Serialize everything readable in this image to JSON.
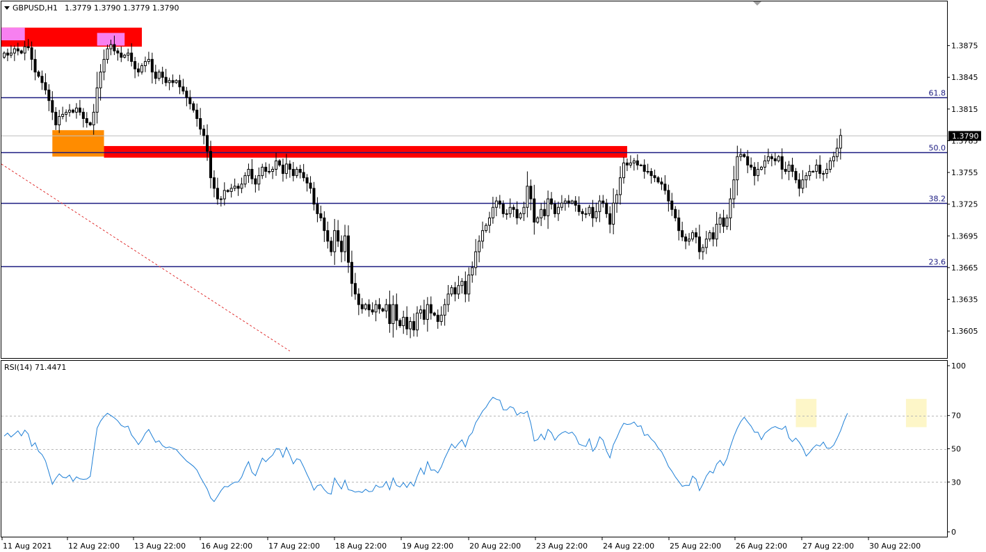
{
  "header": {
    "symbol_tf": "GBPUSD,H1",
    "ohlc": "1.3779 1.3790 1.3779 1.3790"
  },
  "rsi_header": {
    "label": "RSI(14) 71.4471"
  },
  "colors": {
    "axis": "#000000",
    "fib": "#1a1a80",
    "zone_red": "#ff0000",
    "zone_pink": "#f780f0",
    "zone_orange": "#ff8c00",
    "rsi_line": "#1e7fd6",
    "rsi_highlight": "#fdf6c8",
    "trend_dashed": "#e03030",
    "current_price_bg": "#000000"
  },
  "chart_data": [
    {
      "type": "candlestick",
      "symbol": "GBPUSD",
      "timeframe": "H1",
      "current_price": "1.3790",
      "ylim": [
        1.3586,
        1.3905
      ],
      "y_ticks": [
        "1.3875",
        "1.3845",
        "1.3815",
        "1.3785",
        "1.3755",
        "1.3725",
        "1.3695",
        "1.3665",
        "1.3635",
        "1.3605"
      ],
      "x_ticks": [
        "11 Aug 2021",
        "12 Aug 22:00",
        "13 Aug 22:00",
        "16 Aug 22:00",
        "17 Aug 22:00",
        "18 Aug 22:00",
        "19 Aug 22:00",
        "20 Aug 22:00",
        "23 Aug 22:00",
        "24 Aug 22:00",
        "25 Aug 22:00",
        "26 Aug 22:00",
        "27 Aug 22:00",
        "30 Aug 22:00"
      ],
      "fib_levels": [
        {
          "label": "61.8",
          "price": 1.3826
        },
        {
          "label": "50.0",
          "price": 1.3774
        },
        {
          "label": "38.2",
          "price": 1.3726
        },
        {
          "label": "23.6",
          "price": 1.3666
        }
      ],
      "zones": [
        {
          "color": "zone_red",
          "x_from": 0,
          "x_to": 40,
          "price_top": 1.3892,
          "price_bottom": 1.3874
        },
        {
          "color": "zone_pink",
          "x_from": 0,
          "x_to": 6,
          "price_top": 1.3892,
          "price_bottom": 1.388
        },
        {
          "color": "zone_pink",
          "x_from": 27,
          "x_to": 35,
          "price_top": 1.3887,
          "price_bottom": 1.3875
        },
        {
          "color": "zone_orange",
          "x_from": 14,
          "x_to": 29,
          "price_top": 1.3795,
          "price_bottom": 1.377
        },
        {
          "color": "zone_red",
          "x_from": 29,
          "x_to": 181,
          "price_top": 1.378,
          "price_bottom": 1.3769
        }
      ],
      "trendline": {
        "x_from": 0,
        "price_from": 1.3763,
        "x_to": 83,
        "price_to": 1.3586
      },
      "close": [
        1.3868,
        1.3866,
        1.3868,
        1.3872,
        1.387,
        1.3868,
        1.3874,
        1.3873,
        1.3862,
        1.385,
        1.3846,
        1.384,
        1.3833,
        1.3823,
        1.3812,
        1.38,
        1.3808,
        1.381,
        1.3812,
        1.3814,
        1.3812,
        1.3816,
        1.3812,
        1.3806,
        1.3802,
        1.38,
        1.3812,
        1.3835,
        1.385,
        1.3862,
        1.3872,
        1.3876,
        1.387,
        1.3868,
        1.3864,
        1.3866,
        1.3868,
        1.386,
        1.3853,
        1.385,
        1.3856,
        1.386,
        1.3862,
        1.385,
        1.3844,
        1.385,
        1.3845,
        1.384,
        1.3842,
        1.384,
        1.3842,
        1.3836,
        1.3832,
        1.3826,
        1.382,
        1.3814,
        1.3806,
        1.3796,
        1.379,
        1.3775,
        1.375,
        1.374,
        1.373,
        1.373,
        1.3738,
        1.3737,
        1.374,
        1.3742,
        1.374,
        1.3744,
        1.3752,
        1.3758,
        1.3749,
        1.3744,
        1.3752,
        1.376,
        1.3756,
        1.3756,
        1.3758,
        1.3766,
        1.3762,
        1.3754,
        1.3763,
        1.3758,
        1.3752,
        1.3758,
        1.3755,
        1.375,
        1.3745,
        1.374,
        1.3725,
        1.3716,
        1.3712,
        1.37,
        1.369,
        1.368,
        1.37,
        1.369,
        1.368,
        1.3695,
        1.367,
        1.365,
        1.364,
        1.363,
        1.3626,
        1.363,
        1.3625,
        1.3623,
        1.363,
        1.3626,
        1.3624,
        1.363,
        1.3612,
        1.363,
        1.3615,
        1.361,
        1.3618,
        1.3607,
        1.3614,
        1.3606,
        1.3622,
        1.3625,
        1.3616,
        1.363,
        1.3622,
        1.362,
        1.3614,
        1.362,
        1.363,
        1.364,
        1.3646,
        1.364,
        1.3648,
        1.3652,
        1.364,
        1.3658,
        1.3665,
        1.368,
        1.369,
        1.37,
        1.3705,
        1.3712,
        1.3722,
        1.3728,
        1.3725,
        1.3716,
        1.3716,
        1.3722,
        1.372,
        1.3712,
        1.3716,
        1.3722,
        1.3742,
        1.373,
        1.3708,
        1.3712,
        1.372,
        1.3714,
        1.373,
        1.3725,
        1.3716,
        1.3722,
        1.3726,
        1.3728,
        1.3726,
        1.3728,
        1.3724,
        1.3718,
        1.3716,
        1.3716,
        1.3722,
        1.3712,
        1.3718,
        1.3728,
        1.3726,
        1.3716,
        1.3706,
        1.3726,
        1.3734,
        1.375,
        1.3764,
        1.3762,
        1.3764,
        1.3766,
        1.3762,
        1.3762,
        1.3756,
        1.3756,
        1.3752,
        1.375,
        1.3746,
        1.3744,
        1.3738,
        1.3728,
        1.372,
        1.3712,
        1.37,
        1.3694,
        1.369,
        1.3692,
        1.3698,
        1.3694,
        1.368,
        1.3684,
        1.3692,
        1.3698,
        1.3692,
        1.3706,
        1.3712,
        1.3704,
        1.3712,
        1.373,
        1.3748,
        1.377,
        1.3772,
        1.377,
        1.3762,
        1.376,
        1.3752,
        1.3758,
        1.376,
        1.3766,
        1.377,
        1.3768,
        1.3766,
        1.377,
        1.3758,
        1.3756,
        1.3762,
        1.3756,
        1.3748,
        1.374,
        1.3748,
        1.3752,
        1.3756,
        1.3756,
        1.3762,
        1.3754,
        1.3754,
        1.3758,
        1.3766,
        1.377,
        1.3778,
        1.379
      ]
    },
    {
      "type": "line",
      "name": "RSI(14)",
      "ylim": [
        0,
        100
      ],
      "y_ticks": [
        "100",
        "70",
        "50",
        "30",
        "0"
      ],
      "levels": [
        70,
        50,
        30
      ],
      "highlights": [
        {
          "x_from": 230,
          "x_to": 236,
          "value_from": 63,
          "value_to": 80
        },
        {
          "x_from": 262,
          "x_to": 268,
          "value_from": 63,
          "value_to": 80
        }
      ],
      "values": [
        57.6,
        59.4,
        57.1,
        58.9,
        60.8,
        57.8,
        61.2,
        58.9,
        51.5,
        53.6,
        48.4,
        46.5,
        42.7,
        35.7,
        28.6,
        32.2,
        34.9,
        32.9,
        32.5,
        34.2,
        30.4,
        33.1,
        31.9,
        31.6,
        31.8,
        33.4,
        48.0,
        62.5,
        66.6,
        69.4,
        71.4,
        70.0,
        68.6,
        66.8,
        64.1,
        63.0,
        63.6,
        58.3,
        55.7,
        52.5,
        55.3,
        59.3,
        61.6,
        57.7,
        53.9,
        54.8,
        51.9,
        50.6,
        51.1,
        50.3,
        49.5,
        47.0,
        44.8,
        42.6,
        41.1,
        39.4,
        37.2,
        32.9,
        29.4,
        25.7,
        20.4,
        18.2,
        21.4,
        24.8,
        27.3,
        27.1,
        28.7,
        29.9,
        30.0,
        33.0,
        38.2,
        42.2,
        35.8,
        33.8,
        39.2,
        44.4,
        42.2,
        44.4,
        46.2,
        50.0,
        49.9,
        44.9,
        50.8,
        46.1,
        40.9,
        44.0,
        43.3,
        39.1,
        34.5,
        30.2,
        25.1,
        27.8,
        28.4,
        25.4,
        23.3,
        22.7,
        32.4,
        28.8,
        25.8,
        31.1,
        25.3,
        24.9,
        23.9,
        24.3,
        23.7,
        25.6,
        24.2,
        24.4,
        28.1,
        26.8,
        27.1,
        30.3,
        25.3,
        32.4,
        27.9,
        27.0,
        29.6,
        26.7,
        30.0,
        27.5,
        33.4,
        38.4,
        34.6,
        42.2,
        37.1,
        37.3,
        35.5,
        39.0,
        44.3,
        48.6,
        52.9,
        50.4,
        53.2,
        55.4,
        51.1,
        57.4,
        59.7,
        65.7,
        69.0,
        72.7,
        75.0,
        78.5,
        81.0,
        79.8,
        79.3,
        73.4,
        73.3,
        75.4,
        74.5,
        70.2,
        71.8,
        71.2,
        72.6,
        65.2,
        54.7,
        55.5,
        58.8,
        55.5,
        61.7,
        59.6,
        55.1,
        57.9,
        59.5,
        60.4,
        59.2,
        60.0,
        57.5,
        52.8,
        52.0,
        51.4,
        56.0,
        48.5,
        51.3,
        57.2,
        55.1,
        48.6,
        44.5,
        52.4,
        56.7,
        61.6,
        65.3,
        64.6,
        64.9,
        66.1,
        63.4,
        63.8,
        58.0,
        58.6,
        55.8,
        53.9,
        50.5,
        48.2,
        44.1,
        39.3,
        36.5,
        33.0,
        30.3,
        27.4,
        28.0,
        27.9,
        33.5,
        31.7,
        24.8,
        28.8,
        33.6,
        36.5,
        35.4,
        40.8,
        43.0,
        39.9,
        44.1,
        51.4,
        57.4,
        62.4,
        66.3,
        69.0,
        66.2,
        63.6,
        59.9,
        60.0,
        55.5,
        59.3,
        61.0,
        62.6,
        63.4,
        62.3,
        61.7,
        63.6,
        56.6,
        54.3,
        56.4,
        53.9,
        50.6,
        45.6,
        47.8,
        50.5,
        52.4,
        51.6,
        54.0,
        50.4,
        50.3,
        52.2,
        56.3,
        60.9,
        66.6,
        71.4
      ]
    }
  ]
}
